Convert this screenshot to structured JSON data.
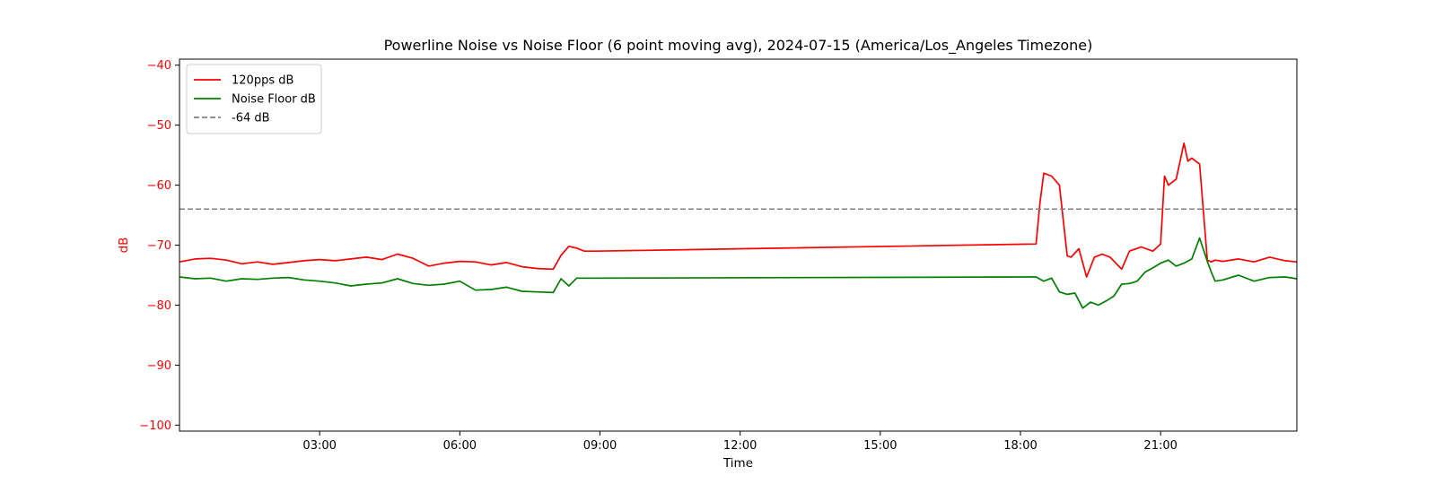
{
  "chart_data": {
    "type": "line",
    "title": "Powerline Noise vs Noise Floor (6 point moving avg), 2024-07-15 (America/Los_Angeles Timezone)",
    "xlabel": "Time",
    "ylabel": "dB",
    "xlim": [
      "00:00",
      "23:55"
    ],
    "ylim": [
      -101,
      -39
    ],
    "x_ticks": [
      "03:00",
      "06:00",
      "09:00",
      "12:00",
      "15:00",
      "18:00",
      "21:00"
    ],
    "y_ticks": [
      -40,
      -50,
      -60,
      -70,
      -80,
      -90,
      -100
    ],
    "ylabel_color": "#ff0000",
    "grid": false,
    "legend_position": "top-left",
    "series": [
      {
        "name": "120pps dB",
        "color": "#ff0000",
        "style": "solid",
        "x": [
          "00:00",
          "00:20",
          "00:40",
          "01:00",
          "01:20",
          "01:40",
          "02:00",
          "02:20",
          "02:40",
          "03:00",
          "03:20",
          "03:40",
          "04:00",
          "04:20",
          "04:40",
          "05:00",
          "05:20",
          "05:40",
          "06:00",
          "06:20",
          "06:40",
          "07:00",
          "07:20",
          "07:40",
          "08:00",
          "08:10",
          "08:20",
          "08:30",
          "08:40",
          "08:55",
          "18:20",
          "18:25",
          "18:30",
          "18:40",
          "18:50",
          "19:00",
          "19:05",
          "19:15",
          "19:25",
          "19:35",
          "19:45",
          "19:55",
          "20:10",
          "20:20",
          "20:35",
          "20:50",
          "21:00",
          "21:05",
          "21:10",
          "21:20",
          "21:30",
          "21:35",
          "21:40",
          "21:50",
          "22:00",
          "22:05",
          "22:10",
          "22:20",
          "22:40",
          "23:00",
          "23:20",
          "23:40",
          "23:55"
        ],
        "values": [
          -72.8,
          -72.3,
          -72.2,
          -72.5,
          -73.1,
          -72.8,
          -73.2,
          -72.9,
          -72.6,
          -72.4,
          -72.6,
          -72.3,
          -72.0,
          -72.4,
          -71.5,
          -72.2,
          -73.5,
          -73.0,
          -72.7,
          -72.8,
          -73.3,
          -72.9,
          -73.6,
          -73.9,
          -74.0,
          -71.7,
          -70.2,
          -70.5,
          -71.0,
          -71.0,
          -69.8,
          -63.0,
          -58.0,
          -58.5,
          -60.0,
          -71.8,
          -72.0,
          -70.6,
          -75.3,
          -72.0,
          -71.5,
          -72.0,
          -74.0,
          -71.0,
          -70.3,
          -71.0,
          -69.8,
          -58.5,
          -60.0,
          -59.0,
          -53.0,
          -56.0,
          -55.5,
          -56.5,
          -72.5,
          -72.8,
          -72.5,
          -72.7,
          -72.3,
          -72.8,
          -72.0,
          -72.6,
          -72.8
        ]
      },
      {
        "name": "Noise Floor dB",
        "color": "#008000",
        "style": "solid",
        "x": [
          "00:00",
          "00:20",
          "00:40",
          "01:00",
          "01:20",
          "01:40",
          "02:00",
          "02:20",
          "02:40",
          "03:00",
          "03:20",
          "03:40",
          "04:00",
          "04:20",
          "04:40",
          "05:00",
          "05:20",
          "05:40",
          "06:00",
          "06:20",
          "06:40",
          "07:00",
          "07:20",
          "07:40",
          "08:00",
          "08:10",
          "08:20",
          "08:30",
          "08:40",
          "08:55",
          "18:20",
          "18:30",
          "18:40",
          "18:50",
          "19:00",
          "19:10",
          "19:20",
          "19:30",
          "19:40",
          "19:50",
          "20:00",
          "20:10",
          "20:20",
          "20:30",
          "20:40",
          "20:50",
          "21:00",
          "21:10",
          "21:20",
          "21:30",
          "21:40",
          "21:50",
          "22:00",
          "22:05",
          "22:10",
          "22:20",
          "22:40",
          "23:00",
          "23:20",
          "23:40",
          "23:55"
        ],
        "values": [
          -75.3,
          -75.6,
          -75.5,
          -76.0,
          -75.6,
          -75.7,
          -75.5,
          -75.4,
          -75.8,
          -76.0,
          -76.3,
          -76.8,
          -76.5,
          -76.3,
          -75.6,
          -76.4,
          -76.7,
          -76.5,
          -76.0,
          -77.5,
          -77.4,
          -77.0,
          -77.7,
          -77.8,
          -77.9,
          -75.6,
          -76.8,
          -75.5,
          -75.5,
          -75.5,
          -75.3,
          -76.0,
          -75.5,
          -77.8,
          -78.2,
          -78.0,
          -80.5,
          -79.5,
          -80.0,
          -79.3,
          -78.5,
          -76.5,
          -76.4,
          -76.0,
          -74.5,
          -73.8,
          -73.0,
          -72.5,
          -73.5,
          -73.0,
          -72.3,
          -68.8,
          -72.7,
          -74.5,
          -76.0,
          -75.8,
          -75.0,
          -76.0,
          -75.4,
          -75.3,
          -75.6
        ]
      },
      {
        "name": "-64 dB",
        "color": "#808080",
        "style": "dashed",
        "x": [
          "00:00",
          "23:55"
        ],
        "values": [
          -64,
          -64
        ]
      }
    ]
  }
}
